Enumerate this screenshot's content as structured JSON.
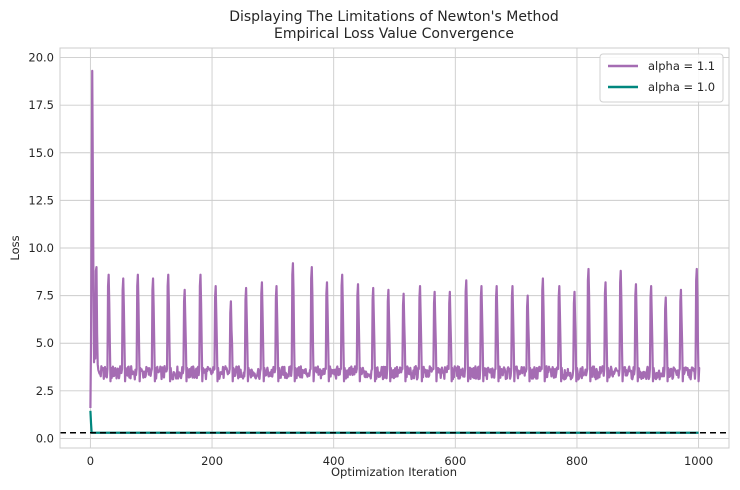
{
  "chart_data": {
    "type": "line",
    "title": "Displaying The Limitations of Newton's Method",
    "subtitle": "Empirical Loss Value Convergence",
    "xlabel": "Optimization Iteration",
    "ylabel": "Loss",
    "xlim": [
      -50,
      1050
    ],
    "ylim": [
      -0.5,
      20.5
    ],
    "xticks": [
      0,
      200,
      400,
      600,
      800,
      1000
    ],
    "yticks": [
      0.0,
      2.5,
      5.0,
      7.5,
      10.0,
      12.5,
      15.0,
      17.5,
      20.0
    ],
    "xtick_labels": [
      "0",
      "200",
      "400",
      "600",
      "800",
      "1000"
    ],
    "ytick_labels": [
      "0.0",
      "2.5",
      "5.0",
      "7.5",
      "10.0",
      "12.5",
      "15.0",
      "17.5",
      "20.0"
    ],
    "grid": true,
    "legend_position": "top-right",
    "reference_line": {
      "y": 0.3,
      "style": "dashed",
      "color": "#000000"
    },
    "series": [
      {
        "name": "alpha = 1.1",
        "color": "#a56cb3",
        "initial": [
          [
            0,
            1.6
          ],
          [
            1,
            5.0
          ],
          [
            2,
            12.0
          ],
          [
            3,
            19.3
          ],
          [
            4,
            14.0
          ],
          [
            5,
            8.0
          ],
          [
            6,
            4.0
          ],
          [
            7,
            7.0
          ],
          [
            8,
            4.2
          ],
          [
            9,
            8.8
          ],
          [
            10,
            9.0
          ],
          [
            11,
            5.5
          ],
          [
            12,
            3.9
          ],
          [
            13,
            3.6
          ],
          [
            15,
            3.4
          ]
        ],
        "base_level": 3.45,
        "spikes": [
          [
            30,
            8.6
          ],
          [
            54,
            8.4
          ],
          [
            78,
            8.6
          ],
          [
            103,
            8.4
          ],
          [
            128,
            8.6
          ],
          [
            155,
            7.8
          ],
          [
            181,
            8.6
          ],
          [
            206,
            8.0
          ],
          [
            231,
            7.2
          ],
          [
            256,
            7.9
          ],
          [
            282,
            8.2
          ],
          [
            306,
            8.0
          ],
          [
            333,
            9.2
          ],
          [
            364,
            9.0
          ],
          [
            389,
            8.2
          ],
          [
            414,
            8.6
          ],
          [
            440,
            8.1
          ],
          [
            465,
            7.9
          ],
          [
            490,
            7.8
          ],
          [
            515,
            7.6
          ],
          [
            542,
            8.0
          ],
          [
            566,
            7.7
          ],
          [
            591,
            7.7
          ],
          [
            618,
            8.3
          ],
          [
            643,
            8.0
          ],
          [
            668,
            8.0
          ],
          [
            694,
            8.0
          ],
          [
            719,
            7.5
          ],
          [
            744,
            8.4
          ],
          [
            771,
            8.0
          ],
          [
            796,
            7.7
          ],
          [
            819,
            8.9
          ],
          [
            847,
            8.2
          ],
          [
            872,
            8.8
          ],
          [
            897,
            8.1
          ],
          [
            922,
            8.0
          ],
          [
            946,
            7.4
          ],
          [
            971,
            7.8
          ],
          [
            997,
            8.9
          ]
        ],
        "end": [
          [
            1000,
            3.5
          ]
        ]
      },
      {
        "name": "alpha = 1.0",
        "color": "#00877e",
        "initial": [
          [
            0,
            1.45
          ],
          [
            1,
            0.8
          ],
          [
            2,
            0.3
          ]
        ],
        "base_level": 0.3,
        "spikes": [],
        "end": [
          [
            1000,
            0.3
          ]
        ]
      }
    ]
  }
}
